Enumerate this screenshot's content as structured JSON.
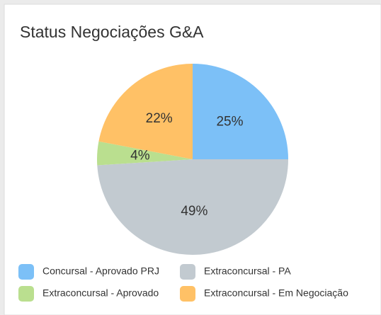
{
  "chart_data": {
    "type": "pie",
    "title": "Status Negociações G&A",
    "categories": [
      "Concursal - Aprovado PRJ",
      "Extraconcursal - PA",
      "Extraconcursal - Aprovado",
      "Extraconcursal - Em Negociação"
    ],
    "values": [
      25,
      49,
      4,
      22
    ],
    "value_labels": [
      "25%",
      "49%",
      "4%",
      "22%"
    ],
    "colors": [
      "#7cc0f7",
      "#c2cad0",
      "#badf8f",
      "#ffc166"
    ]
  }
}
